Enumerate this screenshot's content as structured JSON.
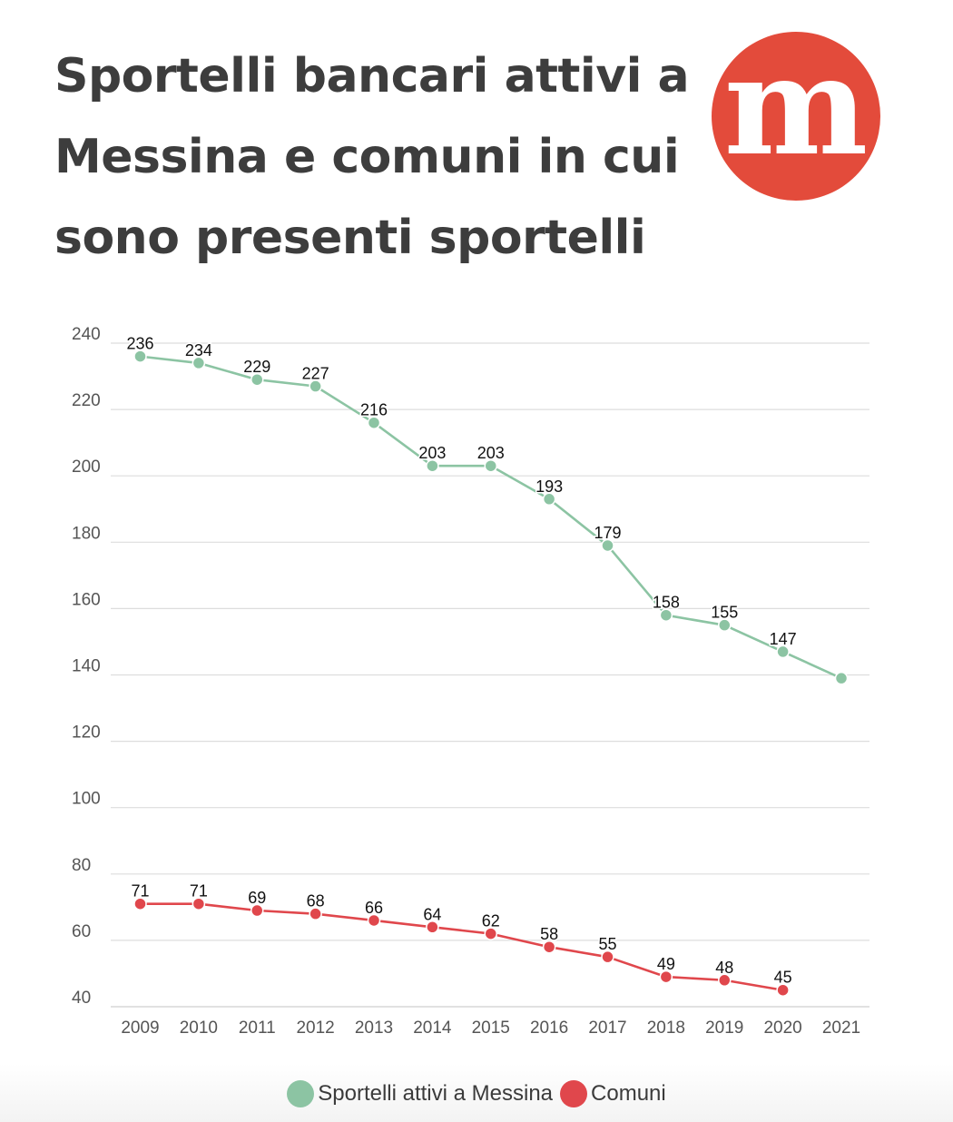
{
  "title": "Sportelli bancari attivi a Messina e comuni in cui sono presenti sportelli",
  "logo": {
    "letter": "m",
    "color": "#e34b3b"
  },
  "chart_data": {
    "type": "line",
    "title": "Sportelli bancari attivi a Messina e comuni in cui sono presenti sportelli",
    "xlabel": "",
    "ylabel": "",
    "categories": [
      "2009",
      "2010",
      "2011",
      "2012",
      "2013",
      "2014",
      "2015",
      "2016",
      "2017",
      "2018",
      "2019",
      "2020",
      "2021"
    ],
    "ylim": [
      40,
      240
    ],
    "yticks": [
      40,
      60,
      80,
      100,
      120,
      140,
      160,
      180,
      200,
      220,
      240
    ],
    "grid": true,
    "legend_position": "bottom",
    "series": [
      {
        "name": "Sportelli attivi a Messina",
        "color": "#8cc4a3",
        "values": [
          236,
          234,
          229,
          227,
          216,
          203,
          203,
          193,
          179,
          158,
          155,
          147,
          139
        ],
        "labels": [
          "236",
          "234",
          "229",
          "227",
          "216",
          "203",
          "203",
          "193",
          "179",
          "158",
          "155",
          "147",
          ""
        ]
      },
      {
        "name": "Comuni",
        "color": "#e0474c",
        "values": [
          71,
          71,
          69,
          68,
          66,
          64,
          62,
          58,
          55,
          49,
          48,
          45,
          null
        ],
        "labels": [
          "71",
          "71",
          "69",
          "68",
          "66",
          "64",
          "62",
          "58",
          "55",
          "49",
          "48",
          "45",
          ""
        ]
      }
    ]
  }
}
